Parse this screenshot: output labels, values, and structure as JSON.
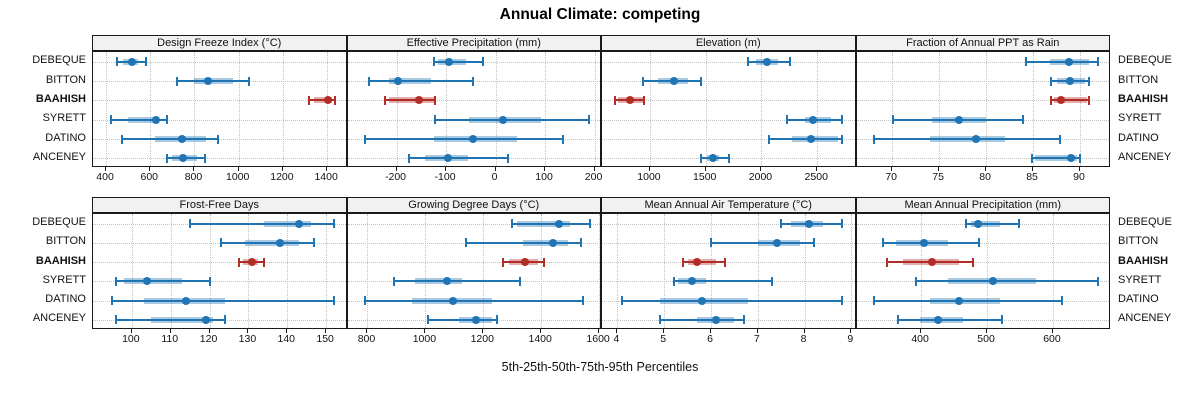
{
  "title": "Annual Climate: competing",
  "axis_caption": "5th-25th-50th-75th-95th Percentiles",
  "sites": [
    "DEBEQUE",
    "BITTON",
    "BAAHISH",
    "SYRETT",
    "DATINO",
    "ANCENEY"
  ],
  "highlight_site": "BAAHISH",
  "percentile_labels": [
    "p5",
    "p25",
    "p50",
    "p75",
    "p95"
  ],
  "colors": {
    "series": "#1f74b4",
    "series_band": "rgba(31,116,180,0.38)",
    "highlight": "#b22d26",
    "highlight_band": "rgba(178,45,38,0.38)",
    "strip_bg": "#f1f1f1",
    "panel_border": "#1a1a1a",
    "grid": "#c2c2c2"
  },
  "chart_data": [
    {
      "type": "scatter",
      "representation": "median-dot-with-percentile-whiskers",
      "title": "Design Freeze Index (°C)",
      "slug": "design-freeze-index",
      "row": 0,
      "col": 0,
      "xlim": [
        341,
        1492
      ],
      "ticks": [
        400,
        600,
        800,
        1000,
        1200,
        1400
      ],
      "percentiles": [
        [
          450,
          478,
          517,
          545,
          580
        ],
        [
          720,
          800,
          860,
          975,
          1046
        ],
        [
          1317,
          1340,
          1404,
          1423,
          1434
        ],
        [
          423,
          498,
          627,
          640,
          675
        ],
        [
          471,
          620,
          742,
          850,
          908
        ],
        [
          675,
          700,
          746,
          810,
          847
        ]
      ]
    },
    {
      "type": "scatter",
      "representation": "median-dot-with-percentile-whiskers",
      "title": "Effective Precipitation (mm)",
      "slug": "effective-precipitation",
      "row": 0,
      "col": 1,
      "xlim": [
        -299,
        215
      ],
      "ticks": [
        -200,
        -100,
        0,
        100,
        200
      ],
      "percentiles": [
        [
          -124,
          -116,
          -95,
          -59,
          -26
        ],
        [
          -255,
          -215,
          -197,
          -130,
          -45
        ],
        [
          -224,
          -215,
          -155,
          -125,
          -122
        ],
        [
          -122,
          -53,
          15,
          92,
          188
        ],
        [
          -264,
          -124,
          -45,
          44,
          137
        ],
        [
          -174,
          -142,
          -97,
          -55,
          25
        ]
      ]
    },
    {
      "type": "scatter",
      "representation": "median-dot-with-percentile-whiskers",
      "title": "Elevation (m)",
      "slug": "elevation",
      "row": 0,
      "col": 2,
      "xlim": [
        570,
        2852
      ],
      "ticks": [
        1000,
        1500,
        2000,
        2500
      ],
      "percentiles": [
        [
          1875,
          1955,
          2050,
          2150,
          2260
        ],
        [
          935,
          1075,
          1215,
          1340,
          1460
        ],
        [
          690,
          710,
          820,
          935,
          950
        ],
        [
          2225,
          2390,
          2460,
          2625,
          2725
        ],
        [
          2065,
          2270,
          2440,
          2685,
          2725
        ],
        [
          1455,
          1510,
          1565,
          1620,
          1710
        ]
      ]
    },
    {
      "type": "scatter",
      "representation": "median-dot-with-percentile-whiskers",
      "title": "Fraction of Annual PPT as Rain",
      "slug": "fraction-ppt-rain",
      "row": 0,
      "col": 3,
      "xlim": [
        66.2,
        93.3
      ],
      "ticks": [
        70,
        75,
        80,
        85,
        90
      ],
      "percentiles": [
        [
          84.3,
          86.8,
          88.8,
          91.0,
          91.9
        ],
        [
          86.9,
          87.5,
          88.9,
          90.5,
          91.0
        ],
        [
          86.9,
          87.2,
          88.0,
          90.7,
          91.0
        ],
        [
          70.1,
          74.2,
          77.1,
          80.0,
          83.9
        ],
        [
          68.1,
          74.0,
          78.9,
          82.0,
          87.9
        ],
        [
          84.9,
          85.2,
          89.0,
          89.7,
          90.0
        ]
      ]
    },
    {
      "type": "scatter",
      "representation": "median-dot-with-percentile-whiskers",
      "title": "Frost-Free Days",
      "slug": "frost-free-days",
      "row": 1,
      "col": 0,
      "xlim": [
        90,
        155.5
      ],
      "ticks": [
        100,
        110,
        120,
        130,
        140,
        150
      ],
      "percentiles": [
        [
          115,
          134,
          143,
          146,
          152
        ],
        [
          123,
          129,
          138,
          143,
          147
        ],
        [
          127.5,
          128.5,
          131,
          132.5,
          134
        ],
        [
          96,
          98,
          104,
          113,
          120
        ],
        [
          95,
          103,
          114,
          124,
          152
        ],
        [
          96,
          105,
          119,
          121,
          124
        ]
      ]
    },
    {
      "type": "scatter",
      "representation": "median-dot-with-percentile-whiskers",
      "title": "Growing Degree Days (°C)",
      "slug": "growing-degree-days",
      "row": 1,
      "col": 1,
      "xlim": [
        731,
        1610
      ],
      "ticks": [
        800,
        1000,
        1200,
        1400,
        1600
      ],
      "percentiles": [
        [
          1300,
          1318,
          1462,
          1499,
          1568
        ],
        [
          1141,
          1337,
          1441,
          1491,
          1539
        ],
        [
          1268,
          1290,
          1344,
          1390,
          1410
        ],
        [
          890,
          965,
          1075,
          1127,
          1326
        ],
        [
          792,
          954,
          1096,
          1229,
          1543
        ],
        [
          1009,
          1116,
          1174,
          1231,
          1246
        ]
      ]
    },
    {
      "type": "scatter",
      "representation": "median-dot-with-percentile-whiskers",
      "title": "Mean Annual Air Temperature (°C)",
      "slug": "mean-annual-air-temperature",
      "row": 1,
      "col": 2,
      "xlim": [
        3.67,
        9.11
      ],
      "ticks": [
        4,
        5,
        6,
        7,
        8,
        9
      ],
      "percentiles": [
        [
          7.5,
          7.7,
          8.1,
          8.4,
          8.8
        ],
        [
          6.0,
          7.0,
          7.4,
          7.9,
          8.2
        ],
        [
          5.4,
          5.5,
          5.7,
          6.1,
          6.3
        ],
        [
          5.2,
          5.3,
          5.6,
          5.9,
          7.3
        ],
        [
          4.1,
          4.9,
          5.8,
          6.8,
          8.8
        ],
        [
          4.9,
          5.7,
          6.1,
          6.5,
          6.7
        ]
      ]
    },
    {
      "type": "scatter",
      "representation": "median-dot-with-percentile-whiskers",
      "title": "Mean Annual Precipitation (mm)",
      "slug": "mean-annual-precipitation",
      "row": 1,
      "col": 3,
      "xlim": [
        302,
        688
      ],
      "ticks": [
        400,
        500,
        600
      ],
      "percentiles": [
        [
          468,
          476,
          486,
          519,
          548
        ],
        [
          342,
          362,
          405,
          441,
          488
        ],
        [
          349,
          372,
          417,
          458,
          479
        ],
        [
          392,
          441,
          509,
          575,
          668
        ],
        [
          329,
          413,
          458,
          519,
          613
        ],
        [
          365,
          398,
          425,
          463,
          523
        ]
      ]
    }
  ]
}
